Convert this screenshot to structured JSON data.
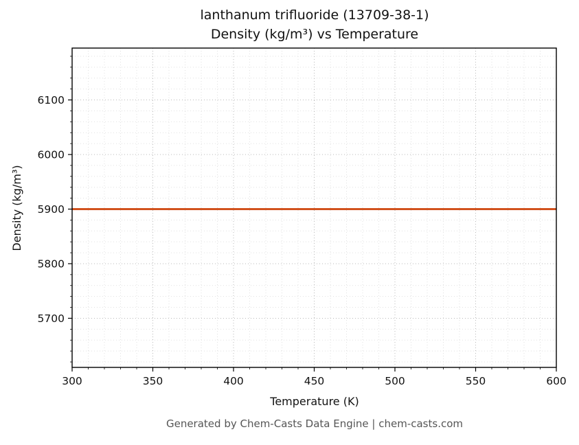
{
  "figure": {
    "title_line1": "lanthanum trifluoride (13709-38-1)",
    "title_line2": "Density (kg/m³) vs Temperature",
    "footer": "Generated by Chem-Casts Data Engine | chem-casts.com"
  },
  "chart_data": {
    "type": "line",
    "title": "lanthanum trifluoride (13709-38-1) — Density (kg/m³) vs Temperature",
    "xlabel": "Temperature (K)",
    "ylabel": "Density (kg/m³)",
    "xlim": [
      300,
      600
    ],
    "ylim": [
      5610,
      6195
    ],
    "x_ticks": [
      300,
      350,
      400,
      450,
      500,
      550,
      600
    ],
    "y_ticks": [
      5700,
      5800,
      5900,
      6000,
      6100
    ],
    "x_minor_step": 10,
    "y_minor_step": 20,
    "grid": true,
    "legend": "none",
    "series": [
      {
        "name": "density",
        "x": [
          300,
          600
        ],
        "y": [
          5900,
          5900
        ],
        "color": "#d2521e",
        "linewidth": 3
      }
    ]
  },
  "colors": {
    "series_line": "#d2521e",
    "major_grid": "#b8b8b8",
    "minor_grid": "#e0e0e0",
    "spine": "#000000",
    "footer_text": "#555555"
  }
}
